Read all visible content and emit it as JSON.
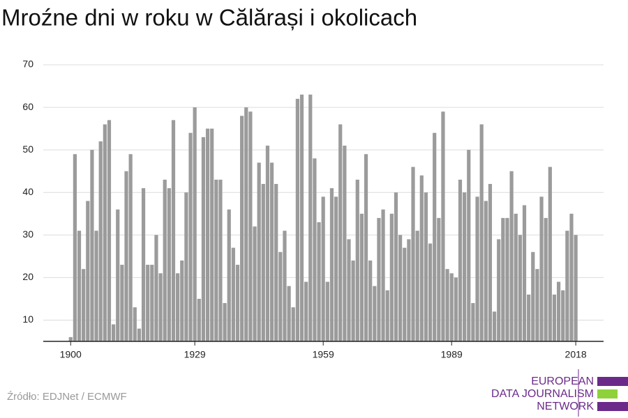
{
  "chart_data": {
    "type": "bar",
    "title": "Mroźne dni w roku w Călărași i okolicach",
    "source": "Źródło: EDJNet / ECMWF",
    "logo": [
      "EUROPEAN",
      "DATA JOURNALISM",
      "NETWORK"
    ],
    "color": "#9b9b9b",
    "grid": true,
    "xlim": [
      1893.6,
      2024.5
    ],
    "xticks": [
      1900,
      1929,
      1959,
      1989,
      2018
    ],
    "ylim": [
      5,
      70
    ],
    "yticks": [
      10,
      20,
      30,
      40,
      50,
      60,
      70
    ],
    "x": [
      1900,
      1901,
      1902,
      1903,
      1904,
      1905,
      1906,
      1907,
      1908,
      1909,
      1910,
      1911,
      1912,
      1913,
      1914,
      1915,
      1916,
      1917,
      1918,
      1919,
      1920,
      1921,
      1922,
      1923,
      1924,
      1925,
      1926,
      1927,
      1928,
      1929,
      1930,
      1931,
      1932,
      1933,
      1934,
      1935,
      1936,
      1937,
      1938,
      1939,
      1940,
      1941,
      1942,
      1943,
      1944,
      1945,
      1946,
      1947,
      1948,
      1949,
      1950,
      1951,
      1952,
      1953,
      1954,
      1955,
      1956,
      1957,
      1958,
      1959,
      1960,
      1961,
      1962,
      1963,
      1964,
      1965,
      1966,
      1967,
      1968,
      1969,
      1970,
      1971,
      1972,
      1973,
      1974,
      1975,
      1976,
      1977,
      1978,
      1979,
      1980,
      1981,
      1982,
      1983,
      1984,
      1985,
      1986,
      1987,
      1988,
      1989,
      1990,
      1991,
      1992,
      1993,
      1994,
      1995,
      1996,
      1997,
      1998,
      1999,
      2000,
      2001,
      2002,
      2003,
      2004,
      2005,
      2006,
      2007,
      2008,
      2009,
      2010,
      2011,
      2012,
      2013,
      2014,
      2015,
      2016,
      2017,
      2018
    ],
    "values": [
      6,
      49,
      31,
      22,
      38,
      50,
      31,
      52,
      56,
      57,
      9,
      36,
      23,
      45,
      49,
      13,
      8,
      41,
      23,
      23,
      30,
      21,
      43,
      41,
      57,
      21,
      24,
      40,
      54,
      60,
      15,
      53,
      55,
      55,
      43,
      43,
      14,
      36,
      27,
      23,
      58,
      60,
      59,
      32,
      47,
      42,
      51,
      47,
      42,
      26,
      31,
      18,
      13,
      62,
      63,
      19,
      63,
      48,
      33,
      39,
      19,
      41,
      39,
      56,
      51,
      29,
      24,
      43,
      35,
      49,
      24,
      18,
      34,
      36,
      17,
      35,
      40,
      30,
      27,
      29,
      46,
      31,
      44,
      40,
      28,
      54,
      34,
      59,
      22,
      21,
      20,
      43,
      40,
      50,
      14,
      39,
      56,
      38,
      42,
      12,
      29,
      34,
      34,
      45,
      35,
      30,
      37,
      16,
      26,
      22,
      39,
      34,
      46,
      16,
      19,
      17,
      31,
      35,
      30
    ]
  }
}
